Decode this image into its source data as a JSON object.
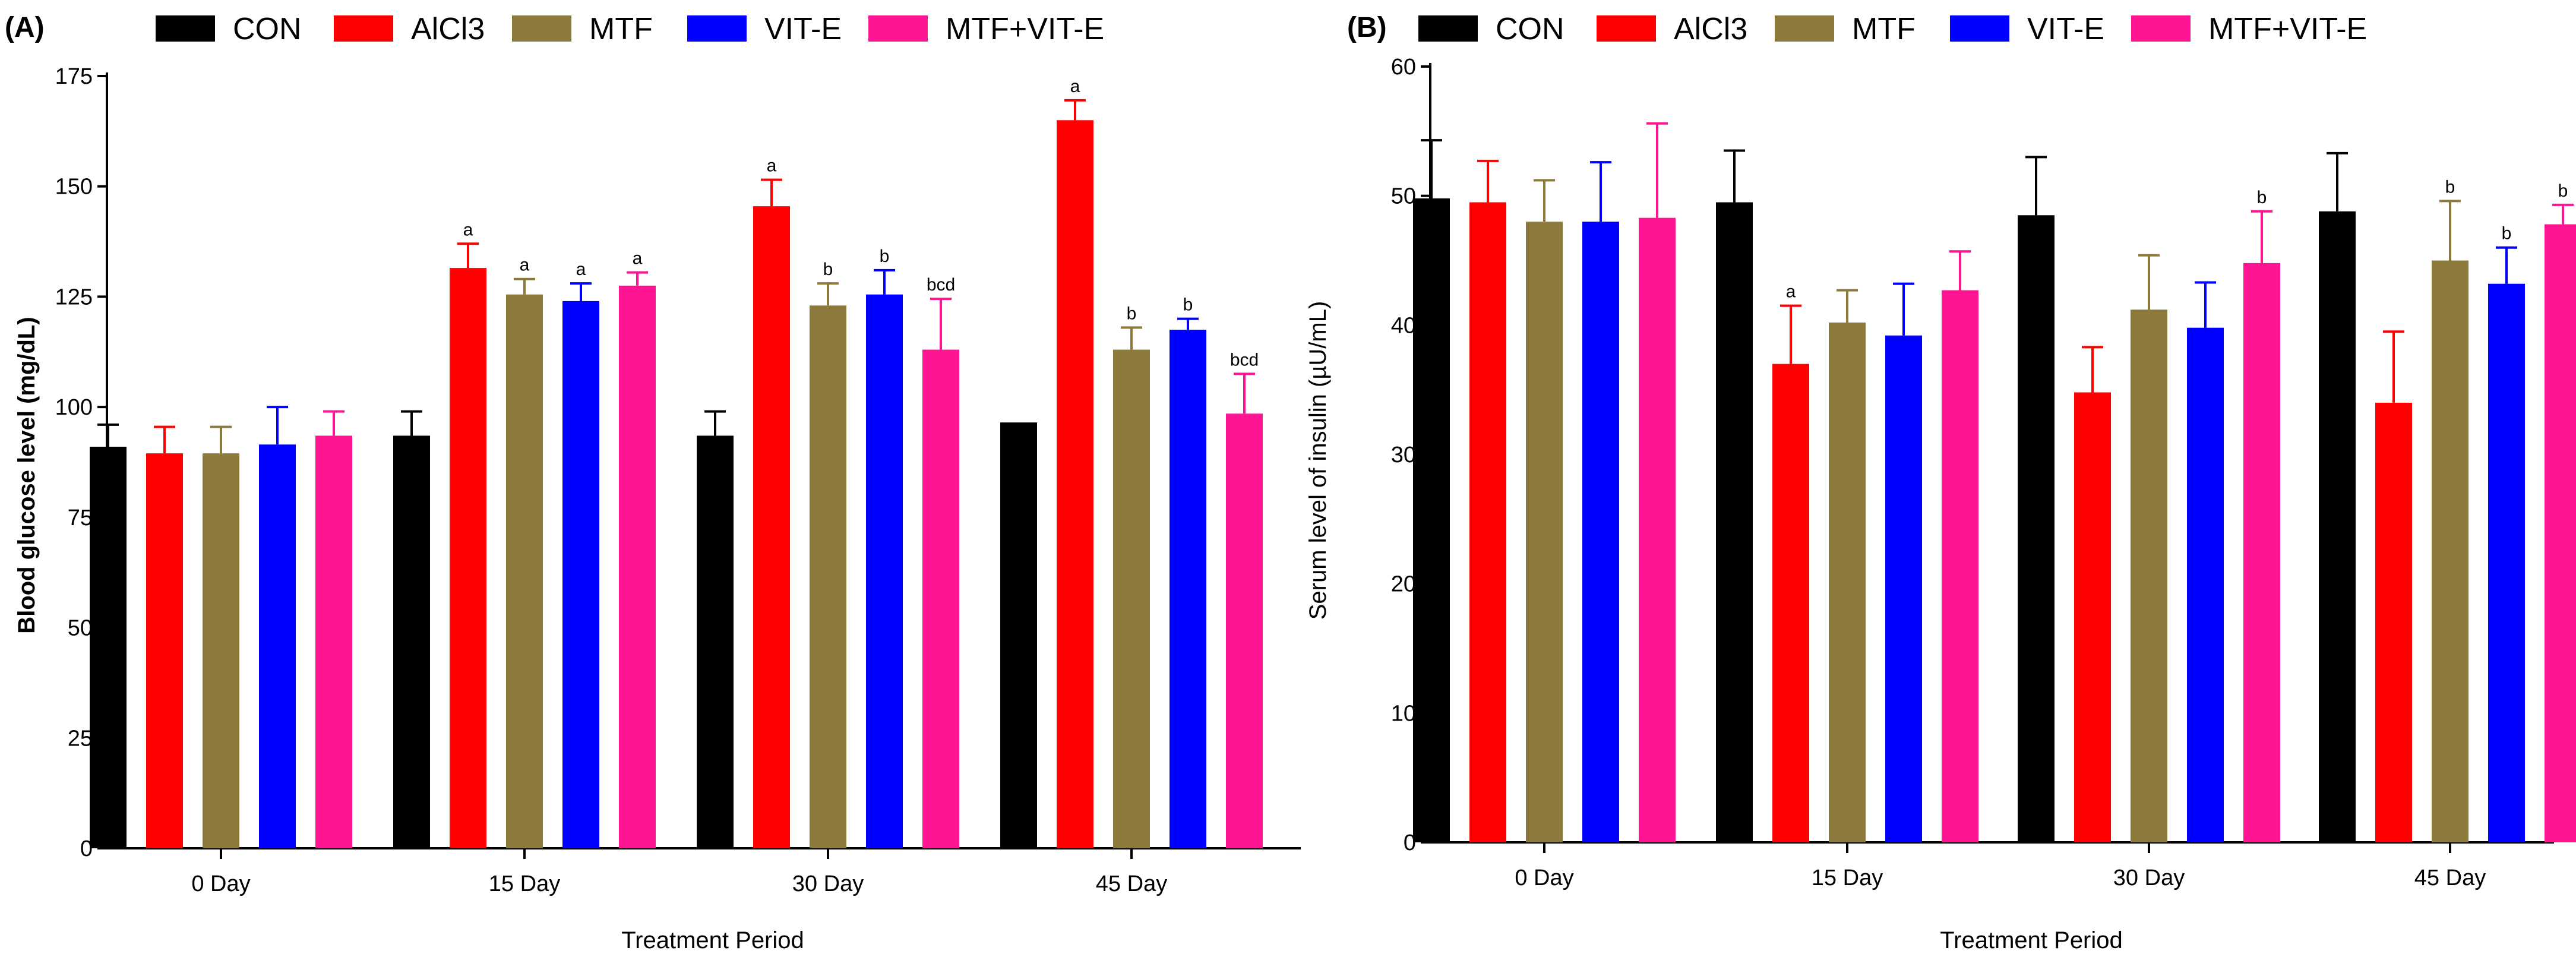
{
  "colors": {
    "CON": "#000000",
    "AlCl3": "#ff0000",
    "MTF": "#8c7a3c",
    "VIT-E": "#0000ff",
    "MTF+VIT-E": "#ff1493"
  },
  "chart_data": [
    {
      "type": "bar",
      "panel_label": "(A)",
      "categories": [
        "0 Day",
        "15 Day",
        "30 Day",
        "45 Day"
      ],
      "series": [
        {
          "name": "CON",
          "values": [
            91,
            93.5,
            93.5,
            96.5
          ],
          "errors": [
            5,
            5.5,
            5.5,
            0
          ],
          "labels": [
            "",
            "",
            "",
            ""
          ]
        },
        {
          "name": "AlCl3",
          "values": [
            89.5,
            131.5,
            145.5,
            165
          ],
          "errors": [
            6,
            5.5,
            6,
            4.5
          ],
          "labels": [
            "",
            "a",
            "a",
            "a"
          ]
        },
        {
          "name": "MTF",
          "values": [
            89.5,
            125.5,
            123,
            113
          ],
          "errors": [
            6,
            3.5,
            5,
            5
          ],
          "labels": [
            "",
            "a",
            "b",
            "b"
          ]
        },
        {
          "name": "VIT-E",
          "values": [
            91.5,
            124,
            125.5,
            117.5
          ],
          "errors": [
            8.5,
            4,
            5.5,
            2.5
          ],
          "labels": [
            "",
            "a",
            "b",
            "b"
          ]
        },
        {
          "name": "MTF+VIT-E",
          "values": [
            93.5,
            127.5,
            113,
            98.5
          ],
          "errors": [
            5.5,
            3,
            11.5,
            9
          ],
          "labels": [
            "",
            "a",
            "bcd",
            "bcd"
          ]
        }
      ],
      "xlabel": "Treatment Period",
      "ylabel": "Blood glucose level (mg/dL)",
      "ylim": [
        0,
        175
      ],
      "yticks": [
        0,
        25,
        50,
        75,
        100,
        125,
        150,
        175
      ],
      "legend": [
        "CON",
        "AlCl3",
        "MTF",
        "VIT-E",
        "MTF+VIT-E"
      ],
      "legend_position": "top"
    },
    {
      "type": "bar",
      "panel_label": "(B)",
      "categories": [
        "0 Day",
        "15 Day",
        "30 Day",
        "45 Day"
      ],
      "series": [
        {
          "name": "CON",
          "values": [
            49.8,
            49.5,
            48.5,
            48.8
          ],
          "errors": [
            4.5,
            4,
            4.5,
            4.5
          ],
          "labels": [
            "",
            "",
            "",
            ""
          ]
        },
        {
          "name": "AlCl3",
          "values": [
            49.5,
            37,
            34.8,
            34
          ],
          "errors": [
            3.2,
            4.5,
            3.5,
            5.5
          ],
          "labels": [
            "",
            "a",
            "",
            ""
          ]
        },
        {
          "name": "MTF",
          "values": [
            48,
            40.2,
            41.2,
            45
          ],
          "errors": [
            3.2,
            2.5,
            4.2,
            4.6
          ],
          "labels": [
            "",
            "",
            "",
            "b"
          ]
        },
        {
          "name": "VIT-E",
          "values": [
            48,
            39.2,
            39.8,
            43.2
          ],
          "errors": [
            4.6,
            4,
            3.5,
            2.8
          ],
          "labels": [
            "",
            "",
            "",
            "b"
          ]
        },
        {
          "name": "MTF+VIT-E",
          "values": [
            48.3,
            42.7,
            44.8,
            47.8
          ],
          "errors": [
            7.3,
            3,
            4,
            1.5
          ],
          "labels": [
            "",
            "",
            "b",
            "b"
          ]
        }
      ],
      "xlabel": "Treatment Period",
      "ylabel": "Serum level of insulin (µU/mL)",
      "ylim": [
        0,
        60
      ],
      "yticks": [
        0,
        10,
        20,
        30,
        40,
        50,
        60
      ],
      "legend": [
        "CON",
        "AlCl3",
        "MTF",
        "VIT-E",
        "MTF+VIT-E"
      ],
      "legend_position": "top"
    }
  ]
}
